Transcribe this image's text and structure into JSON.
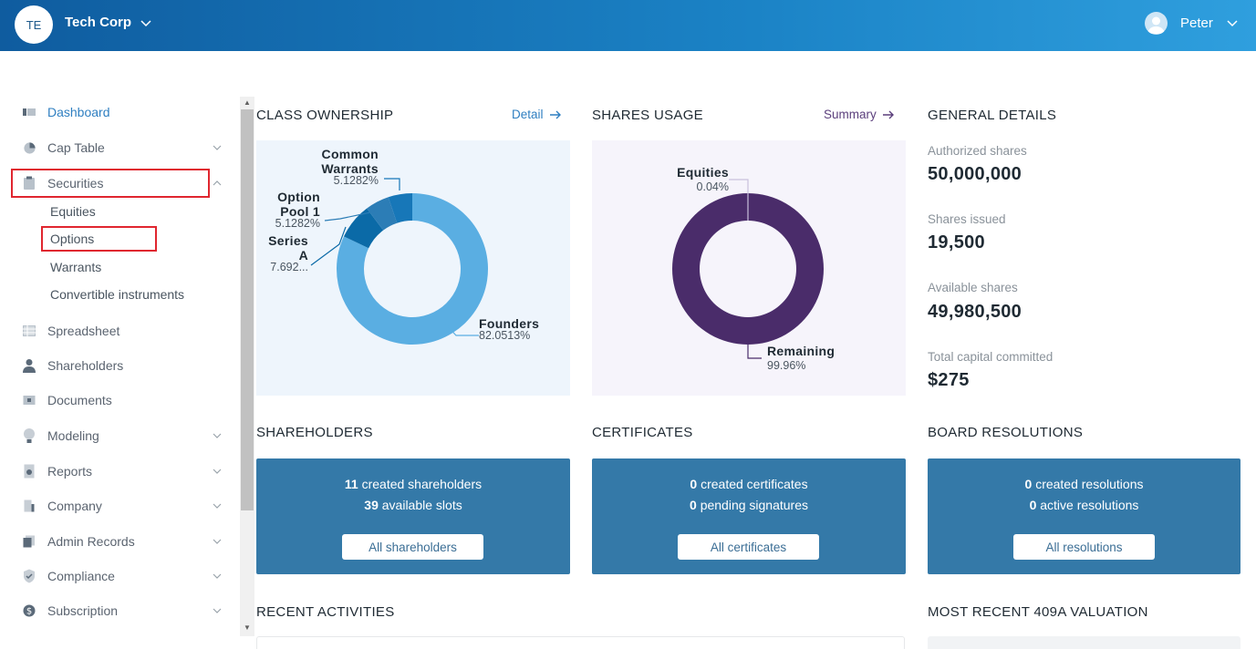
{
  "header": {
    "org_initials": "TE",
    "org_name": "Tech Corp",
    "user_name": "Peter"
  },
  "sidebar": {
    "items": [
      {
        "label": "Dashboard",
        "icon": "dashboard-icon",
        "active": true
      },
      {
        "label": "Cap Table",
        "icon": "pie-chart-icon",
        "expandable": true
      },
      {
        "label": "Securities",
        "icon": "clipboard-icon",
        "expandable": true,
        "expanded": true
      },
      {
        "label": "Spreadsheet",
        "icon": "table-icon"
      },
      {
        "label": "Shareholders",
        "icon": "user-icon"
      },
      {
        "label": "Documents",
        "icon": "folder-icon"
      },
      {
        "label": "Modeling",
        "icon": "lightbulb-icon",
        "expandable": true
      },
      {
        "label": "Reports",
        "icon": "report-icon",
        "expandable": true
      },
      {
        "label": "Company",
        "icon": "building-icon",
        "expandable": true
      },
      {
        "label": "Admin Records",
        "icon": "records-icon",
        "expandable": true
      },
      {
        "label": "Compliance",
        "icon": "shield-icon",
        "expandable": true
      },
      {
        "label": "Subscription",
        "icon": "dollar-icon",
        "expandable": true
      }
    ],
    "securities_sub": [
      "Equities",
      "Options",
      "Warrants",
      "Convertible instruments"
    ]
  },
  "class_ownership": {
    "title": "CLASS OWNERSHIP",
    "link": "Detail"
  },
  "shares_usage": {
    "title": "SHARES USAGE",
    "link": "Summary"
  },
  "chart_data": [
    {
      "type": "pie",
      "title": "CLASS OWNERSHIP",
      "categories": [
        "Founders",
        "Series A",
        "Option Pool 1",
        "Common Warrants"
      ],
      "display_labels": [
        "Founders",
        "Series A",
        "Option Pool 1",
        "Common Warrants"
      ],
      "label_lines": [
        [
          "Founders"
        ],
        [
          "Series",
          "A"
        ],
        [
          "Option",
          "Pool 1"
        ],
        [
          "Common",
          "Warrants"
        ]
      ],
      "value_labels": [
        "82.0513%",
        "7.692...",
        "5.1282%",
        "5.1282%"
      ],
      "values": [
        82.0513,
        7.6923,
        5.1282,
        5.1282
      ],
      "colors": [
        "#5aaee2",
        "#0b6aa7",
        "#2c7db6",
        "#1777b8"
      ]
    },
    {
      "type": "pie",
      "title": "SHARES USAGE",
      "categories": [
        "Equities",
        "Remaining"
      ],
      "value_labels": [
        "0.04%",
        "99.96%"
      ],
      "values": [
        0.04,
        99.96
      ],
      "colors": [
        "#c9c0dc",
        "#4a2c6a"
      ]
    }
  ],
  "general_details": {
    "title": "GENERAL DETAILS",
    "rows": [
      {
        "label": "Authorized shares",
        "value": "50,000,000"
      },
      {
        "label": "Shares issued",
        "value": "19,500"
      },
      {
        "label": "Available shares",
        "value": "49,980,500"
      },
      {
        "label": "Total capital committed",
        "value": "$275"
      }
    ]
  },
  "cards": {
    "shareholders": {
      "title": "SHAREHOLDERS",
      "count1": "11",
      "text1": "created shareholders",
      "count2": "39",
      "text2": "available slots",
      "button": "All shareholders"
    },
    "certificates": {
      "title": "CERTIFICATES",
      "count1": "0",
      "text1": "created certificates",
      "count2": "0",
      "text2": "pending signatures",
      "button": "All certificates"
    },
    "resolutions": {
      "title": "BOARD RESOLUTIONS",
      "count1": "0",
      "text1": "created resolutions",
      "count2": "0",
      "text2": "active resolutions",
      "button": "All resolutions"
    }
  },
  "recent_activities": {
    "title": "RECENT ACTIVITIES"
  },
  "valuation": {
    "title": "MOST RECENT 409A VALUATION"
  },
  "colors": {
    "header_start": "#0f5c9f",
    "header_end": "#2f9fde",
    "card_bg": "#3479a8",
    "link": "#2f7fc1",
    "highlight": "#e0262f"
  }
}
